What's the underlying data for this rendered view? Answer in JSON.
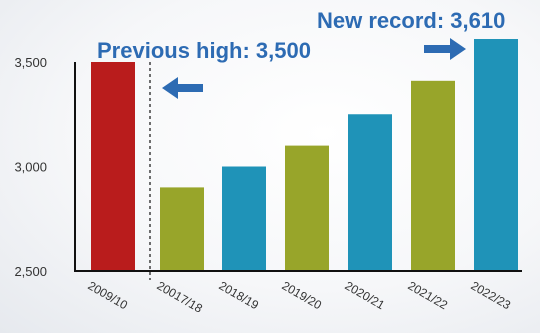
{
  "chart_data": {
    "type": "bar",
    "title": "",
    "xlabel": "",
    "ylabel": "",
    "categories": [
      "2009/10",
      "20017/18",
      "2018/19",
      "2019/20",
      "2020/21",
      "2021/22",
      "2022/23"
    ],
    "values": [
      3500,
      2900,
      3000,
      3100,
      3250,
      3410,
      3610
    ],
    "ylim": [
      2500,
      3610
    ],
    "yticks": [
      "2,500",
      "3,000",
      "3,500"
    ],
    "ytick_values": [
      2500,
      3000,
      3500
    ],
    "grid": false,
    "bar_colors": [
      "#b91c1c",
      "#98a52a",
      "#1f93b8",
      "#98a52a",
      "#1f93b8",
      "#98a52a",
      "#1f93b8"
    ],
    "annotations": [
      {
        "id": "previous-high",
        "text": "Previous high: 3,500",
        "color": "#2d6bb3"
      },
      {
        "id": "new-record",
        "text": "New record: 3,610",
        "color": "#2d6bb3"
      }
    ],
    "arrow_color": "#2d6bb3"
  }
}
